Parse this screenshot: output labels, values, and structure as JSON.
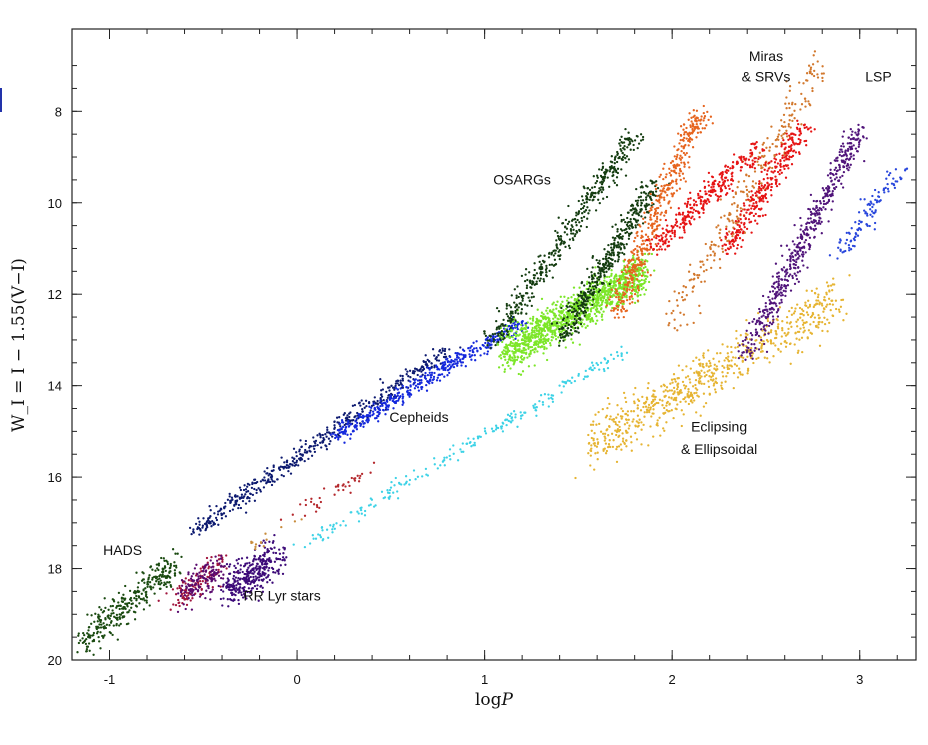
{
  "chart_data": {
    "type": "scatter",
    "xlabel": "log",
    "xlabel_var": "P",
    "ylabel": "W_I = I − 1.55(V−I)",
    "xlim": [
      -1.2,
      3.3
    ],
    "ylim": [
      20,
      6.2
    ],
    "y_inverted": true,
    "x_ticks": [
      -1,
      0,
      1,
      2,
      3
    ],
    "x_tick_labels": [
      "-1",
      "0",
      "1",
      "2",
      "3"
    ],
    "y_ticks": [
      8,
      10,
      12,
      14,
      16,
      18,
      20
    ],
    "y_tick_labels": [
      "8",
      "10",
      "12",
      "14",
      "16",
      "18",
      "20"
    ],
    "grid": false,
    "annotations": [
      {
        "text": "Miras",
        "x": 2.5,
        "y": 6.9
      },
      {
        "text": "& SRVs",
        "x": 2.5,
        "y": 7.35
      },
      {
        "text": "LSP",
        "x": 3.1,
        "y": 7.35
      },
      {
        "text": "OSARGs",
        "x": 1.2,
        "y": 9.6
      },
      {
        "text": "Cepheids",
        "x": 0.65,
        "y": 14.8
      },
      {
        "text": "Eclipsing",
        "x": 2.25,
        "y": 15.0
      },
      {
        "text": "& Ellipsoidal",
        "x": 2.25,
        "y": 15.5
      },
      {
        "text": "HADS",
        "x": -0.93,
        "y": 17.7
      },
      {
        "text": "RR Lyr stars",
        "x": -0.08,
        "y": 18.7
      }
    ],
    "series": [
      {
        "color": "#1a4a10",
        "segments": [
          [
            -1.15,
            19.6,
            -0.65,
            17.9
          ]
        ],
        "width": 0.35,
        "count": 320
      },
      {
        "color": "#a0143c",
        "segments": [
          [
            -0.65,
            18.7,
            -0.4,
            17.9
          ]
        ],
        "width": 0.35,
        "count": 120
      },
      {
        "color": "#5a0a6e",
        "segments": [
          [
            -0.6,
            18.5,
            -0.4,
            18.0
          ]
        ],
        "width": 0.35,
        "count": 140
      },
      {
        "color": "#3c0a78",
        "segments": [
          [
            -0.38,
            18.5,
            -0.1,
            17.7
          ]
        ],
        "width": 0.4,
        "count": 330
      },
      {
        "color": "#0d1a70",
        "segments": [
          [
            -0.55,
            17.2,
            0.8,
            13.2
          ]
        ],
        "width": 0.14,
        "count": 480
      },
      {
        "color": "#1428dc",
        "segments": [
          [
            0.2,
            15.1,
            1.2,
            12.6
          ]
        ],
        "width": 0.13,
        "count": 440
      },
      {
        "color": "#b4282d",
        "segments": [
          [
            -0.05,
            17.0,
            0.4,
            15.8
          ]
        ],
        "width": 0.15,
        "count": 40
      },
      {
        "color": "#c88c3c",
        "segments": [
          [
            -0.3,
            17.6,
            0.05,
            16.9
          ]
        ],
        "width": 0.1,
        "count": 14
      },
      {
        "color": "#3cd2e6",
        "segments": [
          [
            0.0,
            17.6,
            1.75,
            13.2
          ]
        ],
        "width": 0.1,
        "count": 220
      },
      {
        "color": "#7ce628",
        "segments": [
          [
            1.1,
            13.3,
            1.85,
            11.5
          ]
        ],
        "width": 0.45,
        "count": 1200
      },
      {
        "color": "#143c10",
        "segments": [
          [
            1.05,
            13.0,
            1.8,
            8.5
          ],
          [
            1.4,
            13.0,
            1.9,
            9.6
          ]
        ],
        "width": 0.2,
        "count": 900
      },
      {
        "color": "#e6641e",
        "segments": [
          [
            1.7,
            12.4,
            2.15,
            8.0
          ]
        ],
        "width": 0.22,
        "count": 460
      },
      {
        "color": "#d2782d",
        "segments": [
          [
            2.0,
            12.6,
            2.8,
            6.9
          ]
        ],
        "width": 0.5,
        "count": 260
      },
      {
        "color": "#e61414",
        "segments": [
          [
            1.9,
            11.0,
            2.45,
            8.8
          ],
          [
            2.3,
            11.0,
            2.7,
            8.3
          ]
        ],
        "width": 0.2,
        "count": 620
      },
      {
        "color": "#e6b432",
        "segments": [
          [
            1.55,
            15.3,
            2.9,
            12.1
          ]
        ],
        "width": 0.55,
        "count": 700
      },
      {
        "color": "#50147a",
        "segments": [
          [
            2.4,
            13.3,
            3.0,
            8.4
          ]
        ],
        "width": 0.18,
        "count": 520
      },
      {
        "color": "#2846dc",
        "segments": [
          [
            2.9,
            11.1,
            3.2,
            9.3
          ]
        ],
        "width": 0.18,
        "count": 110
      }
    ]
  }
}
